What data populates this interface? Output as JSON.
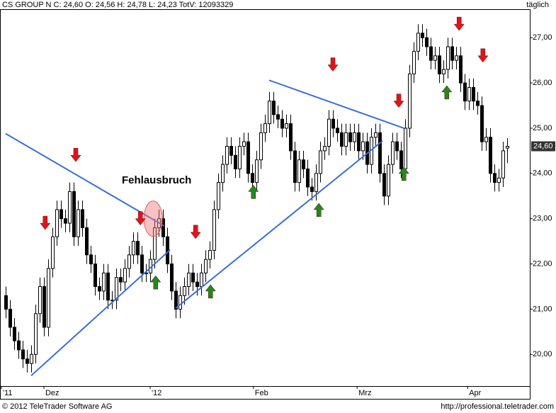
{
  "chart_data": {
    "type": "candlestick",
    "header": "CS GROUP N C: 24,60 O: 24,56 H: 24,78 L: 24,23 TotV: 12093329",
    "interval": "täglich",
    "annotation": "Fehlausbruch",
    "copyright": "© 2012 TeleTrader Software AG",
    "url": "http://professional.teletrader.com",
    "open": [
      21.3,
      21.0,
      20.6,
      20.3,
      20.1,
      19.9,
      19.8,
      20.0,
      20.9,
      21.5,
      20.6,
      21.9,
      22.6,
      23.2,
      23.0,
      22.9,
      23.6,
      22.6,
      23.2,
      22.8,
      22.2,
      22.0,
      21.5,
      21.4,
      21.8,
      21.2,
      21.2,
      21.7,
      21.6,
      21.9,
      22.2,
      22.5,
      22.2,
      21.8,
      21.8,
      22.1,
      22.8,
      23.0,
      22.6,
      22.0,
      21.4,
      21.0,
      21.3,
      21.5,
      21.8,
      21.6,
      21.5,
      21.8,
      22.1,
      22.3,
      23.2,
      23.8,
      24.2,
      24.6,
      24.4,
      24.1,
      24.6,
      24.7,
      24.0,
      23.8,
      24.3,
      24.9,
      25.1,
      25.6,
      25.3,
      25.2,
      25.0,
      25.1,
      24.5,
      23.8,
      24.3,
      24.1,
      23.7,
      23.6,
      24.0,
      24.5,
      24.6,
      25.2,
      25.0,
      24.9,
      24.6,
      24.9,
      24.7,
      24.9,
      24.5,
      24.7,
      24.2,
      24.8,
      24.9,
      24.0,
      23.5,
      24.2,
      24.7,
      24.5,
      24.1,
      25.0,
      26.2,
      26.7,
      27.1,
      27.0,
      26.8,
      26.5,
      26.6,
      26.2,
      26.3,
      26.8,
      26.5,
      26.6,
      26.0,
      25.6,
      25.9,
      25.6,
      25.5,
      24.7,
      24.8,
      24.0,
      23.8,
      23.9,
      24.56
    ],
    "high": [
      21.5,
      21.2,
      20.8,
      20.5,
      20.3,
      20.1,
      20.2,
      21.1,
      21.7,
      21.7,
      22.1,
      22.8,
      23.4,
      23.4,
      23.2,
      23.8,
      23.8,
      23.4,
      23.4,
      23.0,
      22.4,
      22.2,
      21.7,
      22.0,
      22.0,
      21.4,
      21.9,
      21.9,
      22.1,
      22.4,
      22.7,
      22.7,
      22.4,
      22.0,
      22.3,
      23.0,
      23.2,
      23.2,
      22.8,
      22.2,
      21.6,
      21.5,
      21.7,
      22.0,
      22.0,
      21.8,
      22.0,
      22.3,
      22.5,
      23.4,
      24.0,
      24.4,
      24.8,
      24.8,
      24.6,
      24.8,
      24.9,
      24.9,
      24.2,
      24.5,
      25.1,
      25.3,
      25.8,
      25.8,
      25.5,
      25.4,
      25.3,
      25.3,
      24.7,
      24.5,
      24.5,
      24.3,
      23.9,
      24.2,
      24.7,
      24.8,
      25.4,
      25.4,
      25.2,
      25.1,
      25.1,
      25.1,
      25.1,
      25.1,
      24.9,
      24.9,
      25.0,
      25.1,
      25.1,
      24.2,
      24.4,
      24.9,
      24.9,
      24.7,
      25.2,
      26.4,
      26.9,
      27.3,
      27.3,
      27.2,
      27.0,
      26.8,
      26.8,
      26.5,
      27.0,
      27.0,
      26.8,
      26.8,
      26.2,
      26.1,
      26.1,
      25.8,
      25.7,
      25.0,
      25.0,
      24.2,
      24.1,
      24.7,
      24.78
    ],
    "low": [
      20.8,
      20.4,
      20.1,
      19.9,
      19.7,
      19.6,
      19.6,
      19.8,
      20.7,
      20.4,
      20.4,
      21.7,
      22.4,
      22.8,
      22.7,
      22.7,
      22.4,
      22.4,
      22.6,
      22.0,
      21.8,
      21.3,
      21.2,
      21.2,
      21.0,
      21.0,
      21.0,
      21.4,
      21.4,
      21.7,
      22.0,
      22.0,
      21.6,
      21.6,
      21.6,
      21.9,
      22.6,
      22.4,
      21.8,
      21.2,
      20.8,
      20.8,
      21.1,
      21.3,
      21.4,
      21.3,
      21.3,
      21.6,
      21.9,
      22.1,
      23.0,
      23.6,
      24.0,
      24.2,
      23.9,
      23.9,
      24.4,
      23.8,
      23.6,
      23.6,
      24.1,
      24.7,
      24.9,
      25.1,
      25.0,
      24.8,
      24.8,
      24.3,
      23.6,
      23.6,
      23.9,
      23.5,
      23.4,
      23.4,
      23.8,
      24.3,
      24.4,
      24.8,
      24.7,
      24.4,
      24.4,
      24.5,
      24.5,
      24.3,
      24.3,
      24.0,
      24.0,
      24.6,
      23.8,
      23.3,
      23.3,
      24.0,
      24.3,
      23.9,
      23.9,
      24.8,
      26.0,
      26.5,
      26.8,
      26.6,
      26.3,
      26.3,
      26.0,
      26.0,
      26.1,
      26.3,
      26.3,
      25.8,
      25.4,
      25.4,
      25.4,
      25.3,
      24.5,
      24.5,
      23.8,
      23.6,
      23.6,
      23.7,
      24.23
    ],
    "close": [
      21.0,
      20.6,
      20.3,
      20.1,
      19.9,
      19.8,
      20.0,
      20.9,
      21.5,
      20.6,
      21.9,
      22.6,
      23.2,
      23.0,
      22.9,
      23.6,
      22.6,
      23.2,
      22.8,
      22.2,
      22.0,
      21.5,
      21.4,
      21.8,
      21.2,
      21.2,
      21.7,
      21.6,
      21.9,
      22.2,
      22.5,
      22.2,
      21.8,
      21.8,
      22.1,
      22.8,
      23.0,
      22.6,
      22.0,
      21.4,
      21.0,
      21.3,
      21.5,
      21.8,
      21.6,
      21.5,
      21.8,
      22.1,
      22.3,
      23.2,
      23.8,
      24.2,
      24.6,
      24.4,
      24.1,
      24.6,
      24.7,
      24.0,
      23.8,
      24.3,
      24.9,
      25.1,
      25.6,
      25.3,
      25.2,
      25.0,
      25.1,
      24.5,
      23.8,
      24.3,
      24.1,
      23.7,
      23.6,
      24.0,
      24.5,
      24.6,
      25.2,
      25.0,
      24.9,
      24.6,
      24.9,
      24.7,
      24.9,
      24.5,
      24.7,
      24.2,
      24.8,
      24.9,
      24.0,
      23.5,
      24.2,
      24.7,
      24.5,
      24.1,
      25.0,
      26.2,
      26.7,
      27.1,
      27.0,
      26.8,
      26.5,
      26.6,
      26.2,
      26.3,
      26.8,
      26.5,
      26.6,
      26.0,
      25.6,
      25.9,
      25.6,
      25.5,
      24.7,
      24.8,
      24.0,
      23.8,
      23.9,
      24.5,
      24.6
    ],
    "xlim": [
      -1.33,
      123.33
    ],
    "xticks": [
      {
        "value": -1,
        "label": "'11"
      },
      {
        "value": 9,
        "label": "Dez"
      },
      {
        "value": 34,
        "label": "'12"
      },
      {
        "value": 58.3,
        "label": "Feb"
      },
      {
        "value": 82.7,
        "label": "Mrz"
      },
      {
        "value": 108.7,
        "label": "Apr"
      }
    ],
    "ylim": [
      19.3,
      27.63
    ],
    "yticks": [
      {
        "value": 20,
        "label": "20,00"
      },
      {
        "value": 21,
        "label": "21,00"
      },
      {
        "value": 22,
        "label": "22,00"
      },
      {
        "value": 23,
        "label": "23,00"
      },
      {
        "value": 24,
        "label": "24,00"
      },
      {
        "value": 25,
        "label": "25,00"
      },
      {
        "value": 26,
        "label": "26,00"
      },
      {
        "value": 27,
        "label": "27,00"
      }
    ],
    "last_price": {
      "value": 24.6,
      "label": "24,60"
    },
    "trendline_color": "#3a6fd8",
    "trendlines": [
      {
        "x": [
          0,
          37.3
        ],
        "y": [
          24.88,
          22.84
        ]
      },
      {
        "x": [
          6,
          38.7
        ],
        "y": [
          19.53,
          22.31
        ]
      },
      {
        "x": [
          40,
          88.7
        ],
        "y": [
          21.02,
          24.72
        ]
      },
      {
        "x": [
          62,
          93.7
        ],
        "y": [
          26.06,
          25.0
        ]
      }
    ],
    "up_arrow_color": "#1f8a1f",
    "down_arrow_color": "#e0141a",
    "arrows": [
      {
        "x": 9.3,
        "y": 22.9,
        "direction": "down"
      },
      {
        "x": 16.5,
        "y": 24.4,
        "direction": "down"
      },
      {
        "x": 31.7,
        "y": 23.0,
        "direction": "down"
      },
      {
        "x": 44.7,
        "y": 22.7,
        "direction": "down"
      },
      {
        "x": 77,
        "y": 26.4,
        "direction": "down"
      },
      {
        "x": 92.5,
        "y": 25.6,
        "direction": "down"
      },
      {
        "x": 106.7,
        "y": 27.3,
        "direction": "down"
      },
      {
        "x": 112.3,
        "y": 26.6,
        "direction": "down"
      },
      {
        "x": 35.3,
        "y": 21.6,
        "direction": "up"
      },
      {
        "x": 48.2,
        "y": 21.4,
        "direction": "up"
      },
      {
        "x": 58.3,
        "y": 23.6,
        "direction": "up"
      },
      {
        "x": 73.7,
        "y": 23.2,
        "direction": "up"
      },
      {
        "x": 93.7,
        "y": 24.0,
        "direction": "up"
      },
      {
        "x": 103.8,
        "y": 25.8,
        "direction": "up"
      }
    ],
    "highlight": {
      "x": 34.7,
      "y": 23.0
    }
  }
}
